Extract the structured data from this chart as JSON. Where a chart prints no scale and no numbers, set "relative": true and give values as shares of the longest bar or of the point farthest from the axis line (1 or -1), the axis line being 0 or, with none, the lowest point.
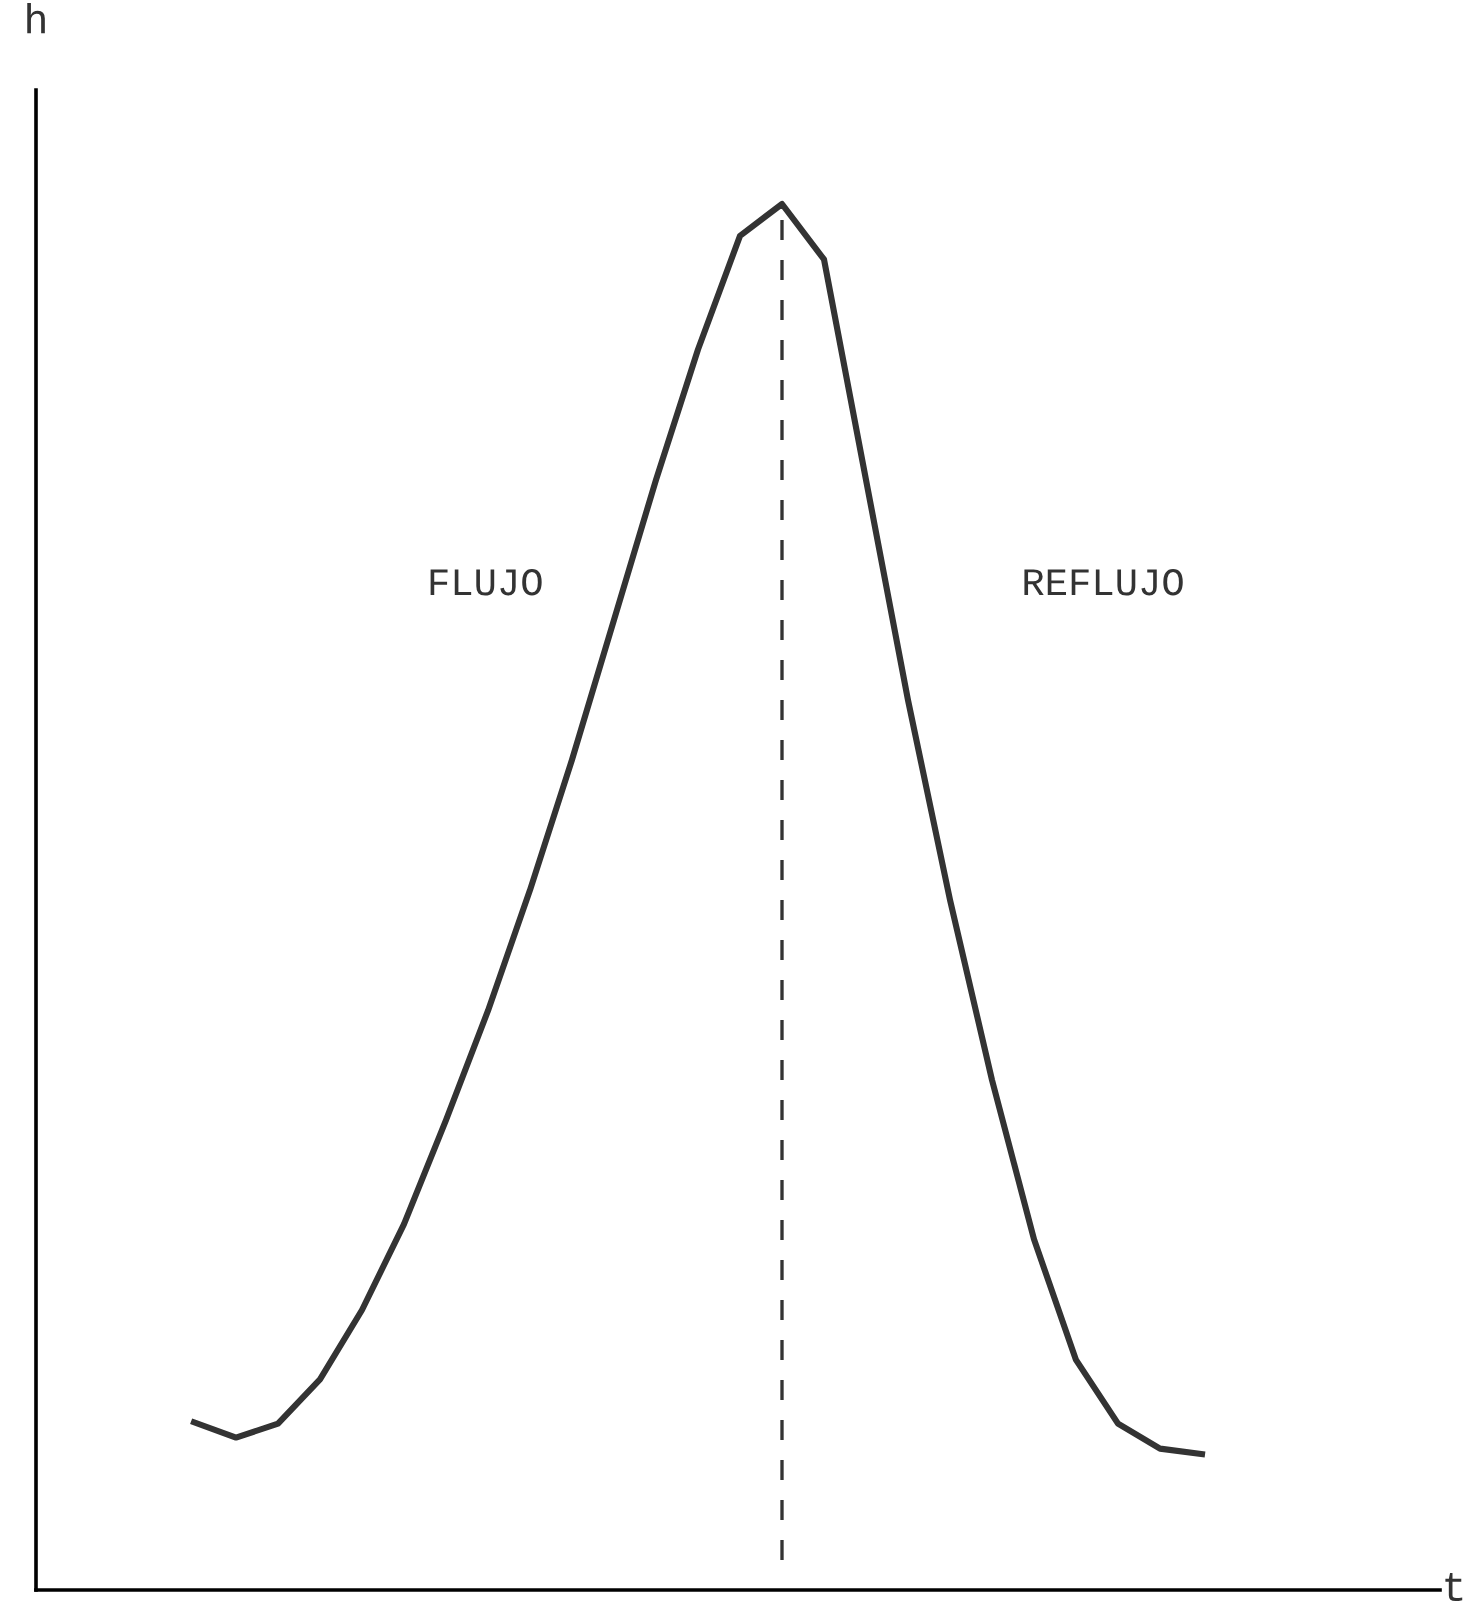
{
  "chart_data": {
    "type": "line",
    "relative": true,
    "categories": [
      null,
      null,
      null,
      null,
      null,
      null,
      null,
      null,
      null,
      null,
      null,
      null,
      null,
      null,
      null,
      null,
      null,
      null,
      null,
      null,
      null,
      null,
      null,
      null,
      null
    ],
    "series": [
      {
        "color": "#333333",
        "values": [
          0.121,
          0.11,
          0.12,
          0.152,
          0.202,
          0.264,
          0.339,
          0.418,
          0.505,
          0.599,
          0.7,
          0.801,
          0.895,
          0.977,
          1,
          0.96,
          0.801,
          0.642,
          0.498,
          0.368,
          0.253,
          0.166,
          0.12,
          0.102,
          0.098
        ]
      }
    ],
    "annotations": [
      "h",
      "t",
      "FLUJO",
      "REFLUJO"
    ],
    "legend": false,
    "marker": "none",
    "line_style": "solid"
  }
}
